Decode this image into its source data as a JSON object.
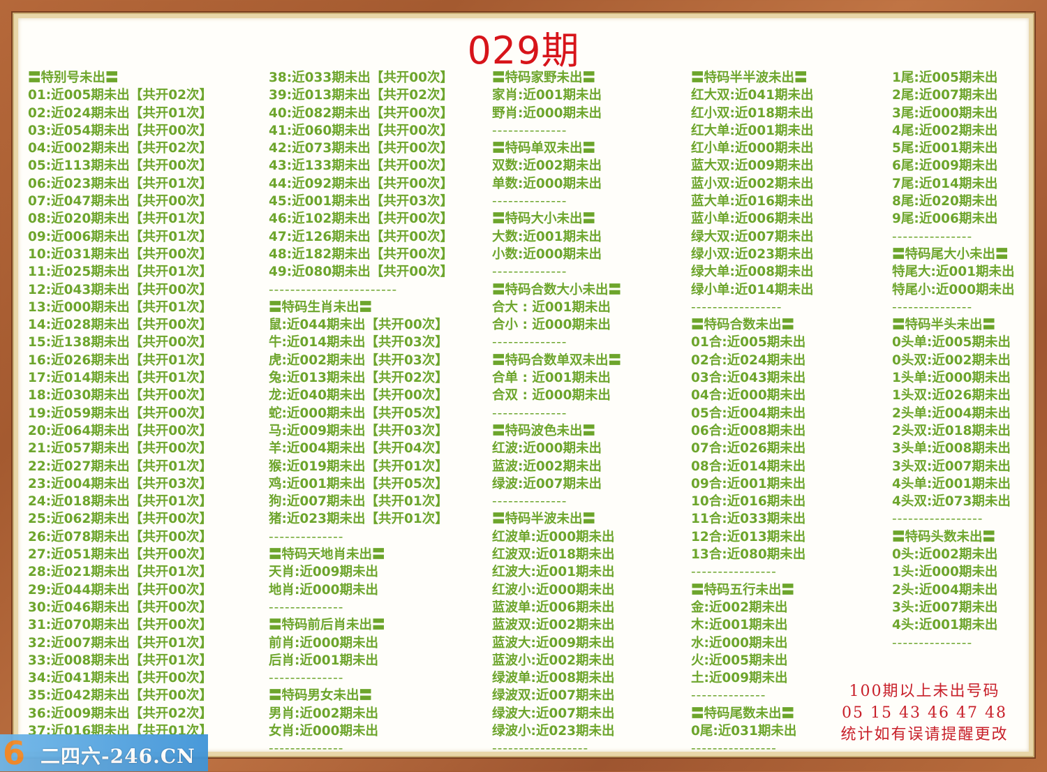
{
  "title": "029期",
  "colors": {
    "text_green": "#6da52c",
    "title_red": "#d7141a",
    "note_red": "#c8202a"
  },
  "columns": [
    [
      {
        "k": "h",
        "t": "〓特别号未出〓"
      },
      {
        "k": "r",
        "t": "01:近005期未出【共开02次】"
      },
      {
        "k": "r",
        "t": "02:近024期未出【共开01次】"
      },
      {
        "k": "r",
        "t": "03:近054期未出【共开00次】"
      },
      {
        "k": "r",
        "t": "04:近002期未出【共开02次】"
      },
      {
        "k": "r",
        "t": "05:近113期未出【共开00次】"
      },
      {
        "k": "r",
        "t": "06:近023期未出【共开01次】"
      },
      {
        "k": "r",
        "t": "07:近047期未出【共开00次】"
      },
      {
        "k": "r",
        "t": "08:近020期未出【共开01次】"
      },
      {
        "k": "r",
        "t": "09:近006期未出【共开01次】"
      },
      {
        "k": "r",
        "t": "10:近031期未出【共开00次】"
      },
      {
        "k": "r",
        "t": "11:近025期未出【共开01次】"
      },
      {
        "k": "r",
        "t": "12:近043期未出【共开00次】"
      },
      {
        "k": "r",
        "t": "13:近000期未出【共开01次】"
      },
      {
        "k": "r",
        "t": "14:近028期未出【共开00次】"
      },
      {
        "k": "r",
        "t": "15:近138期未出【共开00次】"
      },
      {
        "k": "r",
        "t": "16:近026期未出【共开01次】"
      },
      {
        "k": "r",
        "t": "17:近014期未出【共开01次】"
      },
      {
        "k": "r",
        "t": "18:近030期未出【共开00次】"
      },
      {
        "k": "r",
        "t": "19:近059期未出【共开00次】"
      },
      {
        "k": "r",
        "t": "20:近064期未出【共开00次】"
      },
      {
        "k": "r",
        "t": "21:近057期未出【共开00次】"
      },
      {
        "k": "r",
        "t": "22:近027期未出【共开01次】"
      },
      {
        "k": "r",
        "t": "23:近004期未出【共开03次】"
      },
      {
        "k": "r",
        "t": "24:近018期未出【共开01次】"
      },
      {
        "k": "r",
        "t": "25:近062期未出【共开00次】"
      },
      {
        "k": "r",
        "t": "26:近078期未出【共开00次】"
      },
      {
        "k": "r",
        "t": "27:近051期未出【共开00次】"
      },
      {
        "k": "r",
        "t": "28:近021期未出【共开01次】"
      },
      {
        "k": "r",
        "t": "29:近044期未出【共开00次】"
      },
      {
        "k": "r",
        "t": "30:近046期未出【共开00次】"
      },
      {
        "k": "r",
        "t": "31:近070期未出【共开00次】"
      },
      {
        "k": "r",
        "t": "32:近007期未出【共开01次】"
      },
      {
        "k": "r",
        "t": "33:近008期未出【共开01次】"
      },
      {
        "k": "r",
        "t": "34:近041期未出【共开00次】"
      },
      {
        "k": "r",
        "t": "35:近042期未出【共开00次】"
      },
      {
        "k": "r",
        "t": "36:近009期未出【共开02次】"
      },
      {
        "k": "r",
        "t": "37:近016期未出【共开01次】"
      }
    ],
    [
      {
        "k": "r",
        "t": "38:近033期未出【共开00次】"
      },
      {
        "k": "r",
        "t": "39:近013期未出【共开02次】"
      },
      {
        "k": "r",
        "t": "40:近082期未出【共开00次】"
      },
      {
        "k": "r",
        "t": "41:近060期未出【共开00次】"
      },
      {
        "k": "r",
        "t": "42:近073期未出【共开00次】"
      },
      {
        "k": "r",
        "t": "43:近133期未出【共开00次】"
      },
      {
        "k": "r",
        "t": "44:近092期未出【共开00次】"
      },
      {
        "k": "r",
        "t": "45:近001期未出【共开03次】"
      },
      {
        "k": "r",
        "t": "46:近102期未出【共开00次】"
      },
      {
        "k": "r",
        "t": "47:近126期未出【共开00次】"
      },
      {
        "k": "r",
        "t": "48:近182期未出【共开00次】"
      },
      {
        "k": "r",
        "t": "49:近080期未出【共开00次】"
      },
      {
        "k": "sep",
        "t": "------------------------"
      },
      {
        "k": "h",
        "t": "〓特码生肖未出〓"
      },
      {
        "k": "r",
        "t": "鼠:近044期未出【共开00次】"
      },
      {
        "k": "r",
        "t": "牛:近014期未出【共开03次】"
      },
      {
        "k": "r",
        "t": "虎:近002期未出【共开03次】"
      },
      {
        "k": "r",
        "t": "兔:近013期未出【共开02次】"
      },
      {
        "k": "r",
        "t": "龙:近040期未出【共开00次】"
      },
      {
        "k": "r",
        "t": "蛇:近000期未出【共开05次】"
      },
      {
        "k": "r",
        "t": "马:近009期未出【共开03次】"
      },
      {
        "k": "r",
        "t": "羊:近004期未出【共开04次】"
      },
      {
        "k": "r",
        "t": "猴:近019期未出【共开01次】"
      },
      {
        "k": "r",
        "t": "鸡:近001期未出【共开05次】"
      },
      {
        "k": "r",
        "t": "狗:近007期未出【共开01次】"
      },
      {
        "k": "r",
        "t": "猪:近023期未出【共开01次】"
      },
      {
        "k": "sep",
        "t": "--------------"
      },
      {
        "k": "h",
        "t": "〓特码天地肖未出〓"
      },
      {
        "k": "r",
        "t": "天肖:近009期未出"
      },
      {
        "k": "r",
        "t": "地肖:近000期未出"
      },
      {
        "k": "sep",
        "t": "--------------"
      },
      {
        "k": "h",
        "t": "〓特码前后肖未出〓"
      },
      {
        "k": "r",
        "t": "前肖:近000期未出"
      },
      {
        "k": "r",
        "t": "后肖:近001期未出"
      },
      {
        "k": "sep",
        "t": "--------------"
      },
      {
        "k": "h",
        "t": "〓特码男女未出〓"
      },
      {
        "k": "r",
        "t": "男肖:近002期未出"
      },
      {
        "k": "r",
        "t": "女肖:近000期未出"
      },
      {
        "k": "sep",
        "t": "--------------"
      }
    ],
    [
      {
        "k": "h",
        "t": "〓特码家野未出〓"
      },
      {
        "k": "r",
        "t": "家肖:近001期未出"
      },
      {
        "k": "r",
        "t": "野肖:近000期未出"
      },
      {
        "k": "sep",
        "t": "--------------"
      },
      {
        "k": "h",
        "t": "〓特码单双未出〓"
      },
      {
        "k": "r",
        "t": "双数:近002期未出"
      },
      {
        "k": "r",
        "t": "单数:近000期未出"
      },
      {
        "k": "sep",
        "t": "--------------"
      },
      {
        "k": "h",
        "t": "〓特码大小未出〓"
      },
      {
        "k": "r",
        "t": "大数:近001期未出"
      },
      {
        "k": "r",
        "t": "小数:近000期未出"
      },
      {
        "k": "sep",
        "t": "--------------"
      },
      {
        "k": "h",
        "t": "〓特码合数大小未出〓"
      },
      {
        "k": "r",
        "t": "合大 : 近001期未出"
      },
      {
        "k": "r",
        "t": "合小 : 近000期未出"
      },
      {
        "k": "sep",
        "t": "--------------"
      },
      {
        "k": "h",
        "t": "〓特码合数单双未出〓"
      },
      {
        "k": "r",
        "t": "合单 : 近001期未出"
      },
      {
        "k": "r",
        "t": "合双 : 近000期未出"
      },
      {
        "k": "sep",
        "t": "--------------"
      },
      {
        "k": "h",
        "t": "〓特码波色未出〓"
      },
      {
        "k": "r",
        "t": "红波:近000期未出"
      },
      {
        "k": "r",
        "t": "蓝波:近002期未出"
      },
      {
        "k": "r",
        "t": "绿波:近007期未出"
      },
      {
        "k": "sep",
        "t": "--------------"
      },
      {
        "k": "h",
        "t": "〓特码半波未出〓"
      },
      {
        "k": "r",
        "t": "红波单:近000期未出"
      },
      {
        "k": "r",
        "t": "红波双:近018期未出"
      },
      {
        "k": "r",
        "t": "红波大:近001期未出"
      },
      {
        "k": "r",
        "t": "红波小:近000期未出"
      },
      {
        "k": "r",
        "t": "蓝波单:近006期未出"
      },
      {
        "k": "r",
        "t": "蓝波双:近002期未出"
      },
      {
        "k": "r",
        "t": "蓝波大:近009期未出"
      },
      {
        "k": "r",
        "t": "蓝波小:近002期未出"
      },
      {
        "k": "r",
        "t": "绿波单:近008期未出"
      },
      {
        "k": "r",
        "t": "绿波双:近007期未出"
      },
      {
        "k": "r",
        "t": "绿波大:近007期未出"
      },
      {
        "k": "r",
        "t": "绿波小:近023期未出"
      },
      {
        "k": "sep",
        "t": "------------------"
      }
    ],
    [
      {
        "k": "h",
        "t": "〓特码半半波未出〓"
      },
      {
        "k": "r",
        "t": "红大双:近041期未出"
      },
      {
        "k": "r",
        "t": "红小双:近018期未出"
      },
      {
        "k": "r",
        "t": "红大单:近001期未出"
      },
      {
        "k": "r",
        "t": "红小单:近000期未出"
      },
      {
        "k": "r",
        "t": "蓝大双:近009期未出"
      },
      {
        "k": "r",
        "t": "蓝小双:近002期未出"
      },
      {
        "k": "r",
        "t": "蓝大单:近016期未出"
      },
      {
        "k": "r",
        "t": "蓝小单:近006期未出"
      },
      {
        "k": "r",
        "t": "绿大双:近007期未出"
      },
      {
        "k": "r",
        "t": "绿小双:近023期未出"
      },
      {
        "k": "r",
        "t": "绿大单:近008期未出"
      },
      {
        "k": "r",
        "t": "绿小单:近014期未出"
      },
      {
        "k": "sep",
        "t": "-----------------"
      },
      {
        "k": "h",
        "t": "〓特码合数未出〓"
      },
      {
        "k": "r",
        "t": "01合:近005期未出"
      },
      {
        "k": "r",
        "t": "02合:近024期未出"
      },
      {
        "k": "r",
        "t": "03合:近043期未出"
      },
      {
        "k": "r",
        "t": "04合:近000期未出"
      },
      {
        "k": "r",
        "t": "05合:近004期未出"
      },
      {
        "k": "r",
        "t": "06合:近008期未出"
      },
      {
        "k": "r",
        "t": "07合:近026期未出"
      },
      {
        "k": "r",
        "t": "08合:近014期未出"
      },
      {
        "k": "r",
        "t": "09合:近001期未出"
      },
      {
        "k": "r",
        "t": "10合:近016期未出"
      },
      {
        "k": "r",
        "t": "11合:近033期未出"
      },
      {
        "k": "r",
        "t": "12合:近013期未出"
      },
      {
        "k": "r",
        "t": "13合:近080期未出"
      },
      {
        "k": "sep",
        "t": "----------------"
      },
      {
        "k": "h",
        "t": "〓特码五行未出〓"
      },
      {
        "k": "r",
        "t": "金:近002期未出"
      },
      {
        "k": "r",
        "t": "木:近001期未出"
      },
      {
        "k": "r",
        "t": "水:近000期未出"
      },
      {
        "k": "r",
        "t": "火:近005期未出"
      },
      {
        "k": "r",
        "t": "土:近009期未出"
      },
      {
        "k": "sep",
        "t": "--------------"
      },
      {
        "k": "h",
        "t": "〓特码尾数未出〓"
      },
      {
        "k": "r",
        "t": "0尾:近031期未出"
      },
      {
        "k": "sep",
        "t": "----------------"
      }
    ],
    [
      {
        "k": "r",
        "t": "1尾:近005期未出"
      },
      {
        "k": "r",
        "t": "2尾:近007期未出"
      },
      {
        "k": "r",
        "t": "3尾:近000期未出"
      },
      {
        "k": "r",
        "t": "4尾:近002期未出"
      },
      {
        "k": "r",
        "t": "5尾:近001期未出"
      },
      {
        "k": "r",
        "t": "6尾:近009期未出"
      },
      {
        "k": "r",
        "t": "7尾:近014期未出"
      },
      {
        "k": "r",
        "t": "8尾:近020期未出"
      },
      {
        "k": "r",
        "t": "9尾:近006期未出"
      },
      {
        "k": "sep",
        "t": "---------------"
      },
      {
        "k": "h",
        "t": "〓特码尾大小未出〓"
      },
      {
        "k": "r",
        "t": "特尾大:近001期未出"
      },
      {
        "k": "r",
        "t": "特尾小:近000期未出"
      },
      {
        "k": "sep",
        "t": "---------------"
      },
      {
        "k": "h",
        "t": "〓特码半头未出〓"
      },
      {
        "k": "r",
        "t": "0头单:近005期未出"
      },
      {
        "k": "r",
        "t": "0头双:近002期未出"
      },
      {
        "k": "r",
        "t": "1头单:近000期未出"
      },
      {
        "k": "r",
        "t": "1头双:近026期未出"
      },
      {
        "k": "r",
        "t": "2头单:近004期未出"
      },
      {
        "k": "r",
        "t": "2头双:近018期未出"
      },
      {
        "k": "r",
        "t": "3头单:近008期未出"
      },
      {
        "k": "r",
        "t": "3头双:近007期未出"
      },
      {
        "k": "r",
        "t": "4头单:近001期未出"
      },
      {
        "k": "r",
        "t": "4头双:近073期未出"
      },
      {
        "k": "sep",
        "t": "-----------------"
      },
      {
        "k": "h",
        "t": "〓特码头数未出〓"
      },
      {
        "k": "r",
        "t": "0头:近002期未出"
      },
      {
        "k": "r",
        "t": "1头:近000期未出"
      },
      {
        "k": "r",
        "t": "2头:近004期未出"
      },
      {
        "k": "r",
        "t": "3头:近007期未出"
      },
      {
        "k": "r",
        "t": "4头:近001期未出"
      },
      {
        "k": "sep",
        "t": "---------------"
      }
    ]
  ],
  "note": {
    "line1": "100期以上未出号码",
    "line2": "05  15  43  46  47  48",
    "line3": "统计如有误请提醒更改"
  },
  "watermark": {
    "logo_digit": "6",
    "text": "二四六-246.CN"
  }
}
